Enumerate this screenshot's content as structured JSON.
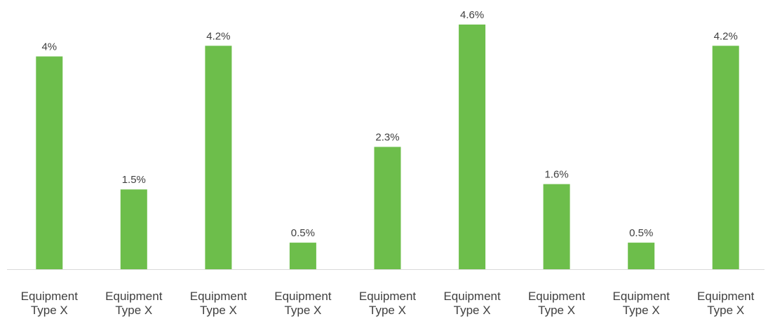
{
  "chart_data": {
    "type": "bar",
    "categories": [
      [
        "Equipment",
        "Type X"
      ],
      [
        "Equipment",
        "Type X"
      ],
      [
        "Equipment",
        "Type X"
      ],
      [
        "Equipment",
        "Type X"
      ],
      [
        "Equipment",
        "Type X"
      ],
      [
        "Equipment",
        "Type X"
      ],
      [
        "Equipment",
        "Type X"
      ],
      [
        "Equipment",
        "Type X"
      ],
      [
        "Equipment",
        "Type X"
      ]
    ],
    "values": [
      4,
      1.5,
      4.2,
      0.5,
      2.3,
      4.6,
      1.6,
      0.5,
      4.2
    ],
    "data_labels": [
      "4%",
      "1.5%",
      "4.2%",
      "0.5%",
      "2.3%",
      "4.6%",
      "1.6%",
      "0.5%",
      "4.2%"
    ],
    "ylim": [
      0,
      4.6
    ],
    "grid": false,
    "legend": "none",
    "colors": {
      "bar": "#6dbe4b",
      "axis": "#d9d9d9",
      "text": "#404040"
    }
  }
}
